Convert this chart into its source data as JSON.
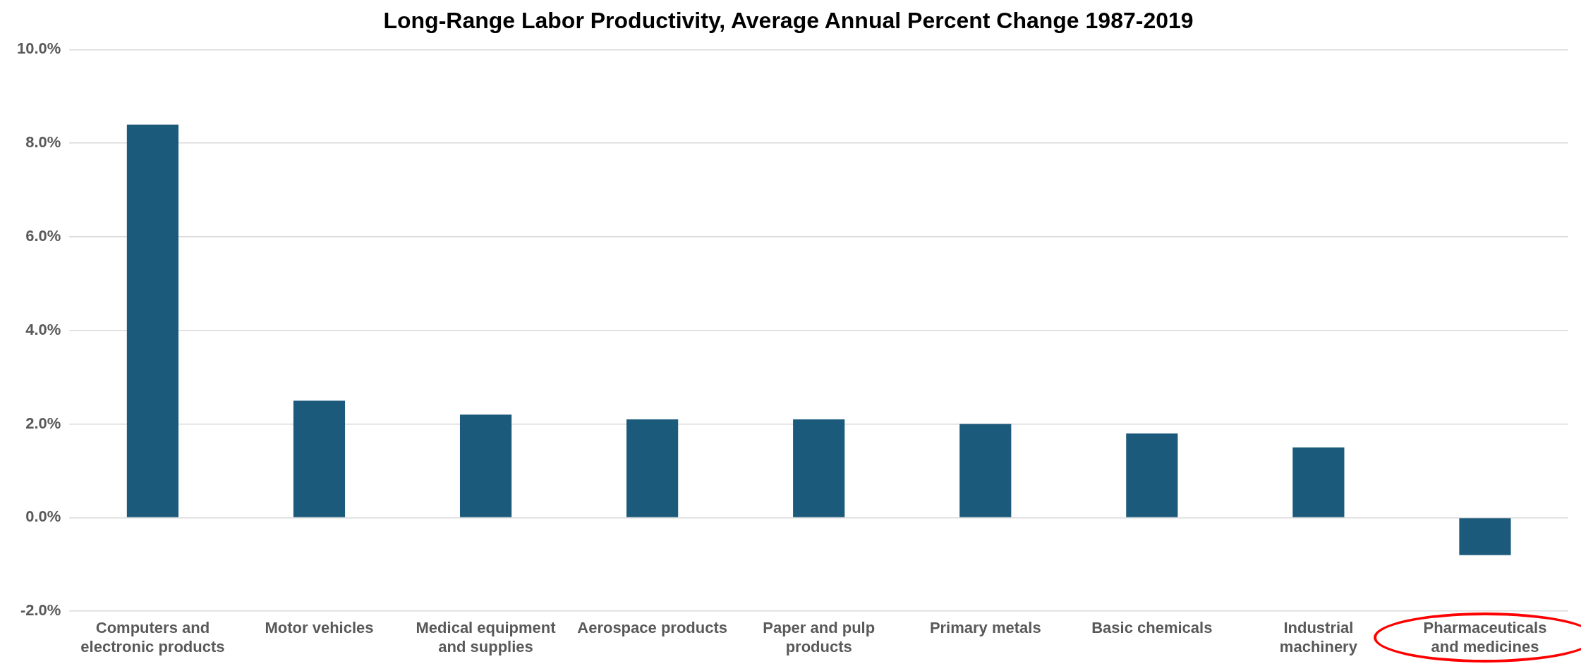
{
  "chart_data": {
    "type": "bar",
    "title": "Long-Range Labor Productivity, Average Annual Percent Change 1987-2019",
    "categories": [
      "Computers and electronic products",
      "Motor vehicles",
      "Medical equipment and supplies",
      "Aerospace products",
      "Paper and pulp products",
      "Primary metals",
      "Basic chemicals",
      "Industrial machinery",
      "Pharmaceuticals and medicines"
    ],
    "values": [
      8.4,
      2.5,
      2.2,
      2.1,
      2.1,
      2.0,
      1.8,
      1.5,
      -0.8
    ],
    "color": "#1b5a7b",
    "ylim": [
      -2,
      10
    ],
    "yticks": [
      {
        "value": -2,
        "label": "-2.0%"
      },
      {
        "value": 0,
        "label": "0.0%"
      },
      {
        "value": 2,
        "label": "2.0%"
      },
      {
        "value": 4,
        "label": "4.0%"
      },
      {
        "value": 6,
        "label": "6.0%"
      },
      {
        "value": 8,
        "label": "8.0%"
      },
      {
        "value": 10,
        "label": "10.0%"
      }
    ],
    "grid": "y",
    "legend": false
  }
}
